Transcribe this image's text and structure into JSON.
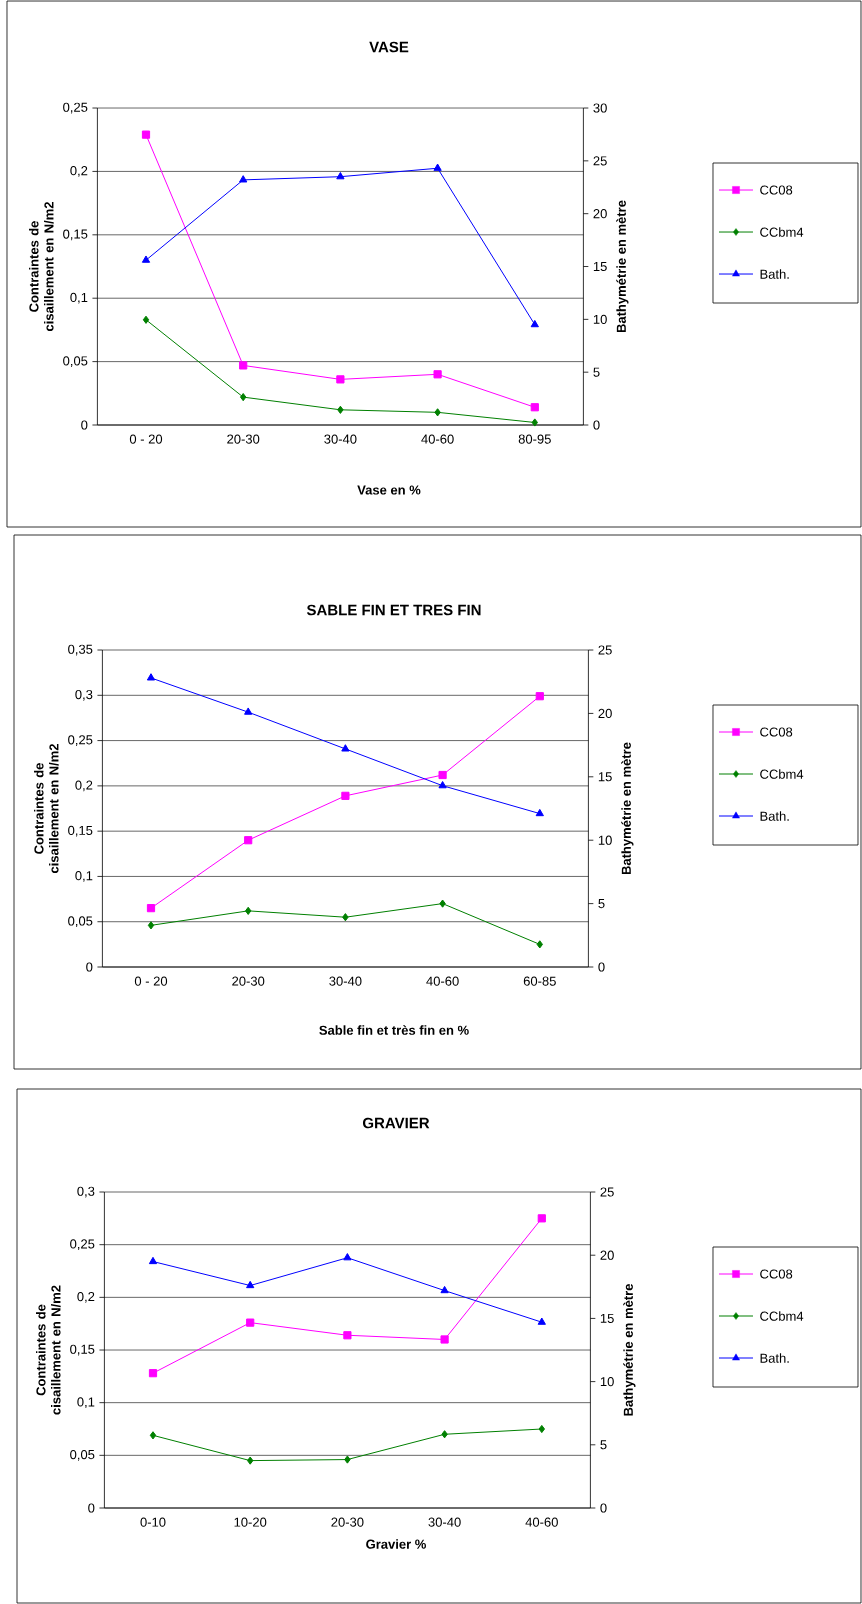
{
  "chart_data": [
    {
      "type": "line",
      "title": "VASE",
      "xlabel": "Vase en %",
      "ylabel": "Contraintes de cisaillement en N/m2",
      "y2label": "Bathymétrie en mètre",
      "categories": [
        "0 - 20",
        "20-30",
        "30-40",
        "40-60",
        "80-95"
      ],
      "series": [
        {
          "name": "CC08",
          "color": "#ff00ff",
          "marker": "square",
          "values": [
            0.229,
            0.047,
            0.036,
            0.04,
            0.014
          ]
        },
        {
          "name": "CCbm4",
          "color": "#008000",
          "marker": "diamond",
          "values": [
            0.083,
            0.022,
            0.012,
            0.01,
            0.002
          ]
        },
        {
          "name": "Bath.",
          "color": "#0000ff",
          "marker": "triangle",
          "axis": "y2",
          "values": [
            15.6,
            23.2,
            23.5,
            24.3,
            9.5
          ]
        }
      ],
      "ylim": [
        0,
        0.25
      ],
      "yticks": [
        0,
        {
          "value": 0.05,
          "label": "0,05"
        },
        {
          "value": 0.1,
          "label": "0,1"
        },
        {
          "value": 0.15,
          "label": "0,15"
        },
        {
          "value": 0.2,
          "label": "0,2"
        },
        {
          "value": 0.25,
          "label": "0,25"
        }
      ],
      "y2lim": [
        0,
        30
      ],
      "y2ticks": [
        0,
        5,
        10,
        15,
        20,
        25,
        30
      ],
      "grid": "y",
      "legend": "right"
    },
    {
      "type": "line",
      "title": "SABLE FIN ET TRES FIN",
      "xlabel": "Sable fin et très fin en %",
      "ylabel": "Contraintes de cisaillement en N/m2",
      "y2label": "Bathymétrie en mètre",
      "categories": [
        "0 - 20",
        "20-30",
        "30-40",
        "40-60",
        "60-85"
      ],
      "series": [
        {
          "name": "CC08",
          "color": "#ff00ff",
          "marker": "square",
          "values": [
            0.065,
            0.14,
            0.189,
            0.212,
            0.299
          ]
        },
        {
          "name": "CCbm4",
          "color": "#008000",
          "marker": "diamond",
          "values": [
            0.046,
            0.062,
            0.055,
            0.07,
            0.025
          ]
        },
        {
          "name": "Bath.",
          "color": "#0000ff",
          "marker": "triangle",
          "axis": "y2",
          "values": [
            22.8,
            20.1,
            17.2,
            14.3,
            12.1
          ]
        }
      ],
      "ylim": [
        0,
        0.35
      ],
      "yticks": [
        0,
        {
          "value": 0.05,
          "label": "0,05"
        },
        {
          "value": 0.1,
          "label": "0,1"
        },
        {
          "value": 0.15,
          "label": "0,15"
        },
        {
          "value": 0.2,
          "label": "0,2"
        },
        {
          "value": 0.25,
          "label": "0,25"
        },
        {
          "value": 0.3,
          "label": "0,3"
        },
        {
          "value": 0.35,
          "label": "0,35"
        }
      ],
      "y2lim": [
        0,
        25
      ],
      "y2ticks": [
        0,
        5,
        10,
        15,
        20,
        25
      ],
      "grid": "y",
      "legend": "right"
    },
    {
      "type": "line",
      "title": "GRAVIER",
      "xlabel": "Gravier %",
      "ylabel": "Contraintes de cisaillement en N/m2",
      "y2label": "Bathymétrie en mètre",
      "categories": [
        "0-10",
        "10-20",
        "20-30",
        "30-40",
        "40-60"
      ],
      "series": [
        {
          "name": "CC08",
          "color": "#ff00ff",
          "marker": "square",
          "values": [
            0.128,
            0.176,
            0.164,
            0.16,
            0.275
          ]
        },
        {
          "name": "CCbm4",
          "color": "#008000",
          "marker": "diamond",
          "values": [
            0.069,
            0.045,
            0.046,
            0.07,
            0.075
          ]
        },
        {
          "name": "Bath.",
          "color": "#0000ff",
          "marker": "triangle",
          "axis": "y2",
          "values": [
            19.5,
            17.6,
            19.8,
            17.2,
            14.7
          ]
        }
      ],
      "ylim": [
        0,
        0.3
      ],
      "yticks": [
        0,
        {
          "value": 0.05,
          "label": "0,05"
        },
        {
          "value": 0.1,
          "label": "0,1"
        },
        {
          "value": 0.15,
          "label": "0,15"
        },
        {
          "value": 0.2,
          "label": "0,2"
        },
        {
          "value": 0.25,
          "label": "0,25"
        },
        {
          "value": 0.3,
          "label": "0,3"
        }
      ],
      "y2lim": [
        0,
        25
      ],
      "y2ticks": [
        0,
        5,
        10,
        15,
        20,
        25
      ],
      "grid": "y",
      "legend": "right"
    }
  ]
}
